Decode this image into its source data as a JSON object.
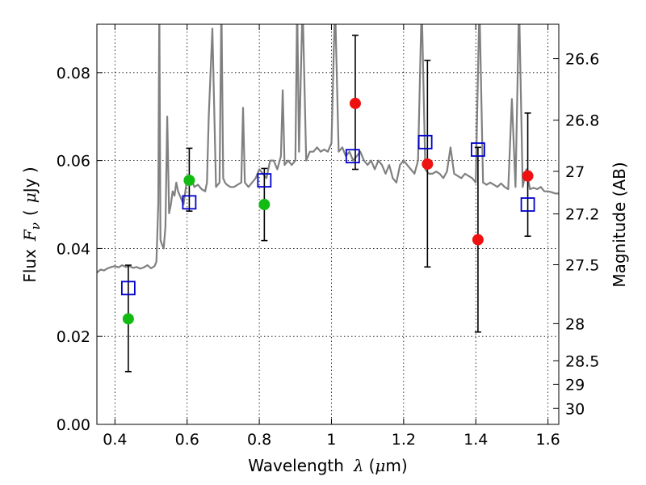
{
  "chart_data": {
    "type": "scatter",
    "title": "",
    "xlabel": "Wavelength",
    "xlabel_symbol": "λ",
    "xlabel_unit_open": "(",
    "xlabel_unit_mu": "μ",
    "xlabel_unit_rest": "m)",
    "ylabel": "Flux",
    "ylabel_symbol_F": "F",
    "ylabel_symbol_sub": "ν",
    "ylabel_unit_open": "(",
    "ylabel_unit_mu": "μ",
    "ylabel_unit_rest": "Jy )",
    "y2label": "Magnitude (AB)",
    "xlim": [
      0.35,
      1.63
    ],
    "ylim": [
      0.0,
      0.091
    ],
    "grid": true,
    "xticks": [
      0.4,
      0.6,
      0.8,
      1.0,
      1.2,
      1.4,
      1.6
    ],
    "xtick_labels": [
      "0.4",
      "0.6",
      "0.8",
      "1",
      "1.2",
      "1.4",
      "1.6"
    ],
    "yticks": [
      0.0,
      0.02,
      0.04,
      0.06,
      0.08
    ],
    "ytick_labels": [
      "0.00",
      "0.02",
      "0.04",
      "0.06",
      "0.08"
    ],
    "y2ticks": [
      {
        "label": "26.6",
        "value": 26.6
      },
      {
        "label": "26.8",
        "value": 26.8
      },
      {
        "label": "27",
        "value": 27.0
      },
      {
        "label": "27.2",
        "value": 27.2
      },
      {
        "label": "27.5",
        "value": 27.5
      },
      {
        "label": "28",
        "value": 28.0
      },
      {
        "label": "28.5",
        "value": 28.5
      },
      {
        "label": "29",
        "value": 29.0
      },
      {
        "label": "30",
        "value": 30.0
      }
    ],
    "colors": {
      "sed": "#808080",
      "model": "#0000cc",
      "green": "#11bb11",
      "red": "#ee1111",
      "errorbar": "#000000"
    },
    "series": [
      {
        "name": "template-spectrum",
        "style": "line",
        "x": [
          0.35,
          0.36,
          0.37,
          0.38,
          0.39,
          0.4,
          0.41,
          0.42,
          0.43,
          0.44,
          0.45,
          0.46,
          0.47,
          0.48,
          0.49,
          0.5,
          0.51,
          0.515,
          0.52,
          0.523,
          0.526,
          0.53,
          0.535,
          0.54,
          0.545,
          0.55,
          0.555,
          0.56,
          0.565,
          0.57,
          0.575,
          0.58,
          0.59,
          0.6,
          0.61,
          0.62,
          0.63,
          0.64,
          0.65,
          0.655,
          0.66,
          0.67,
          0.68,
          0.69,
          0.695,
          0.7,
          0.705,
          0.71,
          0.72,
          0.73,
          0.74,
          0.75,
          0.755,
          0.76,
          0.77,
          0.78,
          0.79,
          0.8,
          0.81,
          0.82,
          0.83,
          0.84,
          0.85,
          0.86,
          0.865,
          0.87,
          0.88,
          0.89,
          0.9,
          0.905,
          0.91,
          0.92,
          0.93,
          0.94,
          0.95,
          0.96,
          0.97,
          0.98,
          0.99,
          1.0,
          1.01,
          1.02,
          1.03,
          1.04,
          1.05,
          1.06,
          1.07,
          1.08,
          1.09,
          1.1,
          1.11,
          1.12,
          1.13,
          1.14,
          1.15,
          1.16,
          1.17,
          1.18,
          1.19,
          1.2,
          1.21,
          1.22,
          1.23,
          1.24,
          1.25,
          1.26,
          1.27,
          1.28,
          1.29,
          1.3,
          1.31,
          1.32,
          1.33,
          1.34,
          1.35,
          1.36,
          1.37,
          1.38,
          1.39,
          1.4,
          1.41,
          1.42,
          1.43,
          1.44,
          1.45,
          1.46,
          1.47,
          1.48,
          1.49,
          1.5,
          1.51,
          1.52,
          1.53,
          1.54,
          1.55,
          1.56,
          1.57,
          1.58,
          1.59,
          1.6,
          1.61,
          1.62,
          1.63
        ],
        "y": [
          0.0345,
          0.0352,
          0.035,
          0.0355,
          0.0358,
          0.036,
          0.0357,
          0.0362,
          0.0358,
          0.036,
          0.0356,
          0.0358,
          0.0354,
          0.0357,
          0.0362,
          0.0355,
          0.036,
          0.037,
          0.05,
          0.096,
          0.042,
          0.041,
          0.04,
          0.045,
          0.07,
          0.048,
          0.05,
          0.053,
          0.052,
          0.055,
          0.053,
          0.052,
          0.05,
          0.056,
          0.056,
          0.054,
          0.0545,
          0.0535,
          0.053,
          0.055,
          0.07,
          0.09,
          0.054,
          0.055,
          0.096,
          0.056,
          0.055,
          0.0545,
          0.054,
          0.054,
          0.0545,
          0.055,
          0.072,
          0.055,
          0.054,
          0.055,
          0.056,
          0.058,
          0.057,
          0.056,
          0.06,
          0.06,
          0.058,
          0.061,
          0.076,
          0.059,
          0.06,
          0.059,
          0.06,
          0.096,
          0.062,
          0.096,
          0.06,
          0.062,
          0.062,
          0.063,
          0.062,
          0.0625,
          0.062,
          0.064,
          0.096,
          0.062,
          0.063,
          0.061,
          0.062,
          0.06,
          0.061,
          0.062,
          0.06,
          0.059,
          0.06,
          0.058,
          0.06,
          0.059,
          0.057,
          0.059,
          0.056,
          0.055,
          0.059,
          0.06,
          0.059,
          0.058,
          0.057,
          0.06,
          0.096,
          0.058,
          0.057,
          0.057,
          0.0575,
          0.057,
          0.056,
          0.0575,
          0.063,
          0.057,
          0.0565,
          0.056,
          0.057,
          0.0565,
          0.056,
          0.055,
          0.096,
          0.055,
          0.0545,
          0.055,
          0.0545,
          0.054,
          0.0548,
          0.054,
          0.0535,
          0.074,
          0.054,
          0.096,
          0.054,
          0.058,
          0.0535,
          0.0538,
          0.0535,
          0.054,
          0.053,
          0.053,
          0.0528,
          0.0525,
          0.0525
        ]
      },
      {
        "name": "model-photometry",
        "style": "open-square",
        "x": [
          0.437,
          0.606,
          0.814,
          1.059,
          1.26,
          1.406,
          1.544
        ],
        "y": [
          0.031,
          0.0505,
          0.0555,
          0.061,
          0.0642,
          0.0625,
          0.05
        ]
      },
      {
        "name": "observed-green",
        "style": "filled-circle",
        "x": [
          0.437,
          0.606,
          0.814
        ],
        "y": [
          0.024,
          0.0555,
          0.05
        ],
        "yerr_low": [
          0.012,
          0.0485,
          0.0418
        ],
        "yerr_high": [
          0.0362,
          0.0628,
          0.0582
        ]
      },
      {
        "name": "observed-red",
        "style": "filled-circle",
        "x": [
          1.066,
          1.266,
          1.406,
          1.544
        ],
        "y": [
          0.073,
          0.0592,
          0.042,
          0.0565
        ],
        "yerr_low": [
          0.058,
          0.0358,
          0.021,
          0.0428
        ],
        "yerr_high": [
          0.0885,
          0.0828,
          0.063,
          0.0708
        ]
      }
    ]
  }
}
